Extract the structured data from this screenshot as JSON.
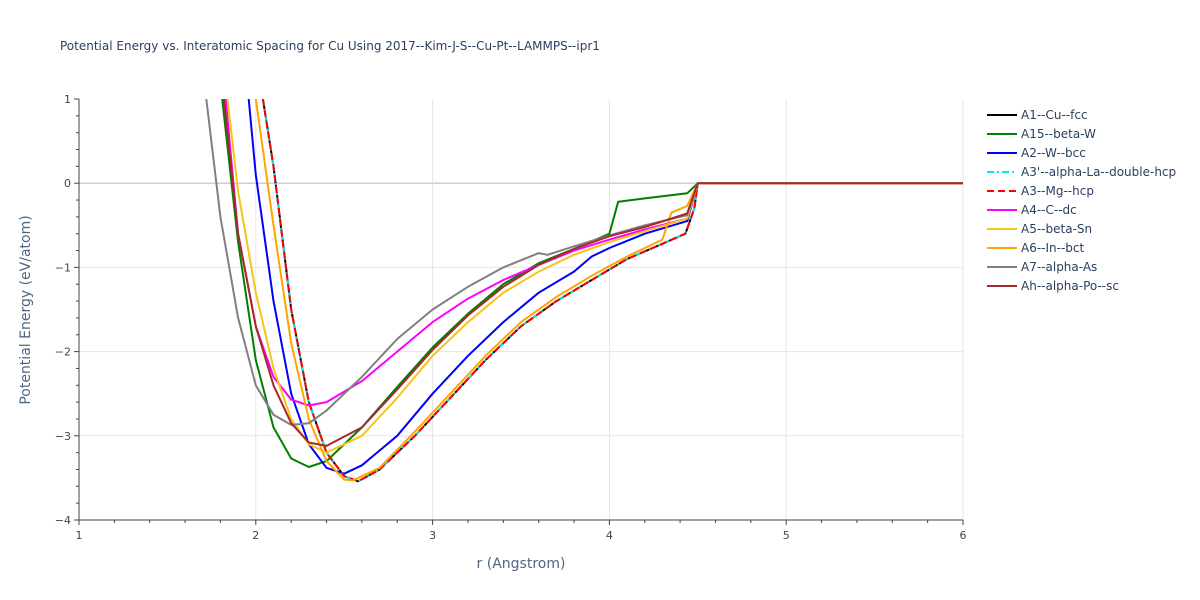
{
  "chart_data": {
    "type": "line",
    "title": "Potential Energy vs. Interatomic Spacing for Cu Using 2017--Kim-J-S--Cu-Pt--LAMMPS--ipr1",
    "xlabel": "r (Angstrom)",
    "ylabel": "Potential Energy (eV/atom)",
    "xlim": [
      1,
      6
    ],
    "ylim": [
      -4,
      1
    ],
    "xticks": [
      "1",
      "2",
      "3",
      "4",
      "5",
      "6"
    ],
    "yticks": [
      "1",
      "0",
      "−1",
      "−2",
      "−3",
      "−4"
    ],
    "grid": true,
    "legend_position": "top-right",
    "series": [
      {
        "name": "A1--Cu--fcc",
        "color": "#000000",
        "dash": "solid",
        "points": [
          [
            2.04,
            1
          ],
          [
            2.1,
            0.2
          ],
          [
            2.2,
            -1.5
          ],
          [
            2.3,
            -2.6
          ],
          [
            2.4,
            -3.2
          ],
          [
            2.5,
            -3.48
          ],
          [
            2.58,
            -3.54
          ],
          [
            2.7,
            -3.4
          ],
          [
            2.9,
            -3.0
          ],
          [
            3.1,
            -2.55
          ],
          [
            3.3,
            -2.1
          ],
          [
            3.5,
            -1.7
          ],
          [
            3.7,
            -1.4
          ],
          [
            3.9,
            -1.15
          ],
          [
            4.1,
            -0.9
          ],
          [
            4.3,
            -0.72
          ],
          [
            4.43,
            -0.6
          ],
          [
            4.48,
            -0.3
          ],
          [
            4.5,
            0
          ],
          [
            6,
            0
          ]
        ]
      },
      {
        "name": "A15--beta-W",
        "color": "#008000",
        "dash": "solid",
        "points": [
          [
            1.81,
            1
          ],
          [
            1.9,
            -0.7
          ],
          [
            2.0,
            -2.1
          ],
          [
            2.1,
            -2.9
          ],
          [
            2.2,
            -3.27
          ],
          [
            2.3,
            -3.37
          ],
          [
            2.4,
            -3.3
          ],
          [
            2.6,
            -2.9
          ],
          [
            2.8,
            -2.42
          ],
          [
            3.0,
            -1.95
          ],
          [
            3.2,
            -1.55
          ],
          [
            3.4,
            -1.2
          ],
          [
            3.6,
            -0.95
          ],
          [
            3.8,
            -0.78
          ],
          [
            4.0,
            -0.6
          ],
          [
            4.05,
            -0.22
          ],
          [
            4.2,
            -0.18
          ],
          [
            4.44,
            -0.12
          ],
          [
            4.5,
            0
          ],
          [
            6,
            0
          ]
        ]
      },
      {
        "name": "A2--W--bcc",
        "color": "#0000ff",
        "dash": "solid",
        "points": [
          [
            1.96,
            1
          ],
          [
            2.0,
            0.1
          ],
          [
            2.1,
            -1.4
          ],
          [
            2.2,
            -2.5
          ],
          [
            2.3,
            -3.1
          ],
          [
            2.4,
            -3.38
          ],
          [
            2.5,
            -3.45
          ],
          [
            2.6,
            -3.35
          ],
          [
            2.8,
            -3.0
          ],
          [
            3.0,
            -2.5
          ],
          [
            3.2,
            -2.05
          ],
          [
            3.4,
            -1.65
          ],
          [
            3.6,
            -1.3
          ],
          [
            3.8,
            -1.05
          ],
          [
            3.9,
            -0.87
          ],
          [
            4.0,
            -0.77
          ],
          [
            4.2,
            -0.6
          ],
          [
            4.44,
            -0.45
          ],
          [
            4.5,
            0
          ],
          [
            6,
            0
          ]
        ]
      },
      {
        "name": "A3'--alpha-La--double-hcp",
        "color": "#00e5ee",
        "dash": "dashdot",
        "points": [
          [
            2.04,
            1
          ],
          [
            2.1,
            0.2
          ],
          [
            2.2,
            -1.5
          ],
          [
            2.3,
            -2.6
          ],
          [
            2.4,
            -3.2
          ],
          [
            2.5,
            -3.48
          ],
          [
            2.58,
            -3.54
          ],
          [
            2.7,
            -3.4
          ],
          [
            2.9,
            -3.0
          ],
          [
            3.1,
            -2.55
          ],
          [
            3.3,
            -2.1
          ],
          [
            3.5,
            -1.7
          ],
          [
            3.7,
            -1.4
          ],
          [
            3.9,
            -1.15
          ],
          [
            4.1,
            -0.9
          ],
          [
            4.3,
            -0.72
          ],
          [
            4.43,
            -0.6
          ],
          [
            4.48,
            -0.3
          ],
          [
            4.5,
            0
          ],
          [
            6,
            0
          ]
        ]
      },
      {
        "name": "A3--Mg--hcp",
        "color": "#ff0000",
        "dash": "dash",
        "points": [
          [
            2.04,
            1
          ],
          [
            2.1,
            0.2
          ],
          [
            2.2,
            -1.5
          ],
          [
            2.3,
            -2.6
          ],
          [
            2.4,
            -3.2
          ],
          [
            2.5,
            -3.48
          ],
          [
            2.58,
            -3.54
          ],
          [
            2.7,
            -3.4
          ],
          [
            2.9,
            -3.0
          ],
          [
            3.1,
            -2.55
          ],
          [
            3.3,
            -2.1
          ],
          [
            3.5,
            -1.7
          ],
          [
            3.7,
            -1.4
          ],
          [
            3.9,
            -1.15
          ],
          [
            4.1,
            -0.9
          ],
          [
            4.3,
            -0.72
          ],
          [
            4.43,
            -0.6
          ],
          [
            4.48,
            -0.3
          ],
          [
            4.5,
            0
          ],
          [
            6,
            0
          ]
        ]
      },
      {
        "name": "A4--C--dc",
        "color": "#ff00ff",
        "dash": "solid",
        "points": [
          [
            1.83,
            1
          ],
          [
            1.9,
            -0.6
          ],
          [
            2.0,
            -1.7
          ],
          [
            2.1,
            -2.3
          ],
          [
            2.2,
            -2.57
          ],
          [
            2.3,
            -2.64
          ],
          [
            2.4,
            -2.6
          ],
          [
            2.6,
            -2.35
          ],
          [
            2.8,
            -2.0
          ],
          [
            3.0,
            -1.65
          ],
          [
            3.2,
            -1.37
          ],
          [
            3.4,
            -1.15
          ],
          [
            3.6,
            -0.97
          ],
          [
            3.8,
            -0.8
          ],
          [
            4.0,
            -0.67
          ],
          [
            4.2,
            -0.55
          ],
          [
            4.44,
            -0.42
          ],
          [
            4.5,
            0
          ],
          [
            6,
            0
          ]
        ]
      },
      {
        "name": "A5--beta-Sn",
        "color": "#f5c518",
        "dash": "solid",
        "points": [
          [
            1.84,
            1
          ],
          [
            1.9,
            -0.1
          ],
          [
            2.0,
            -1.3
          ],
          [
            2.1,
            -2.2
          ],
          [
            2.2,
            -2.8
          ],
          [
            2.3,
            -3.1
          ],
          [
            2.4,
            -3.2
          ],
          [
            2.6,
            -3.0
          ],
          [
            2.8,
            -2.55
          ],
          [
            3.0,
            -2.05
          ],
          [
            3.2,
            -1.65
          ],
          [
            3.4,
            -1.3
          ],
          [
            3.6,
            -1.05
          ],
          [
            3.8,
            -0.85
          ],
          [
            4.0,
            -0.7
          ],
          [
            4.2,
            -0.57
          ],
          [
            4.44,
            -0.42
          ],
          [
            4.5,
            0
          ],
          [
            6,
            0
          ]
        ]
      },
      {
        "name": "A6--In--bct",
        "color": "#ffa500",
        "dash": "solid",
        "points": [
          [
            2.0,
            1
          ],
          [
            2.1,
            -0.5
          ],
          [
            2.2,
            -1.9
          ],
          [
            2.3,
            -2.8
          ],
          [
            2.4,
            -3.3
          ],
          [
            2.5,
            -3.52
          ],
          [
            2.55,
            -3.53
          ],
          [
            2.7,
            -3.38
          ],
          [
            2.9,
            -2.95
          ],
          [
            3.1,
            -2.5
          ],
          [
            3.3,
            -2.05
          ],
          [
            3.5,
            -1.65
          ],
          [
            3.7,
            -1.35
          ],
          [
            3.9,
            -1.1
          ],
          [
            4.1,
            -0.87
          ],
          [
            4.3,
            -0.67
          ],
          [
            4.35,
            -0.35
          ],
          [
            4.44,
            -0.27
          ],
          [
            4.5,
            0
          ],
          [
            6,
            0
          ]
        ]
      },
      {
        "name": "A7--alpha-As",
        "color": "#808080",
        "dash": "solid",
        "points": [
          [
            1.72,
            1
          ],
          [
            1.8,
            -0.4
          ],
          [
            1.9,
            -1.6
          ],
          [
            2.0,
            -2.4
          ],
          [
            2.1,
            -2.75
          ],
          [
            2.2,
            -2.87
          ],
          [
            2.3,
            -2.85
          ],
          [
            2.4,
            -2.7
          ],
          [
            2.6,
            -2.3
          ],
          [
            2.8,
            -1.85
          ],
          [
            3.0,
            -1.5
          ],
          [
            3.2,
            -1.23
          ],
          [
            3.4,
            -1.0
          ],
          [
            3.6,
            -0.83
          ],
          [
            3.65,
            -0.85
          ],
          [
            3.8,
            -0.75
          ],
          [
            4.0,
            -0.62
          ],
          [
            4.2,
            -0.5
          ],
          [
            4.44,
            -0.38
          ],
          [
            4.5,
            0
          ],
          [
            6,
            0
          ]
        ]
      },
      {
        "name": "Ah--alpha-Po--sc",
        "color": "#a52a2a",
        "dash": "solid",
        "points": [
          [
            1.82,
            1
          ],
          [
            1.9,
            -0.6
          ],
          [
            2.0,
            -1.7
          ],
          [
            2.1,
            -2.4
          ],
          [
            2.2,
            -2.85
          ],
          [
            2.3,
            -3.08
          ],
          [
            2.4,
            -3.12
          ],
          [
            2.6,
            -2.9
          ],
          [
            2.8,
            -2.45
          ],
          [
            3.0,
            -1.98
          ],
          [
            3.2,
            -1.57
          ],
          [
            3.4,
            -1.23
          ],
          [
            3.6,
            -0.97
          ],
          [
            3.8,
            -0.78
          ],
          [
            4.0,
            -0.63
          ],
          [
            4.2,
            -0.52
          ],
          [
            4.44,
            -0.36
          ],
          [
            4.5,
            0
          ],
          [
            6,
            0
          ]
        ]
      }
    ]
  }
}
